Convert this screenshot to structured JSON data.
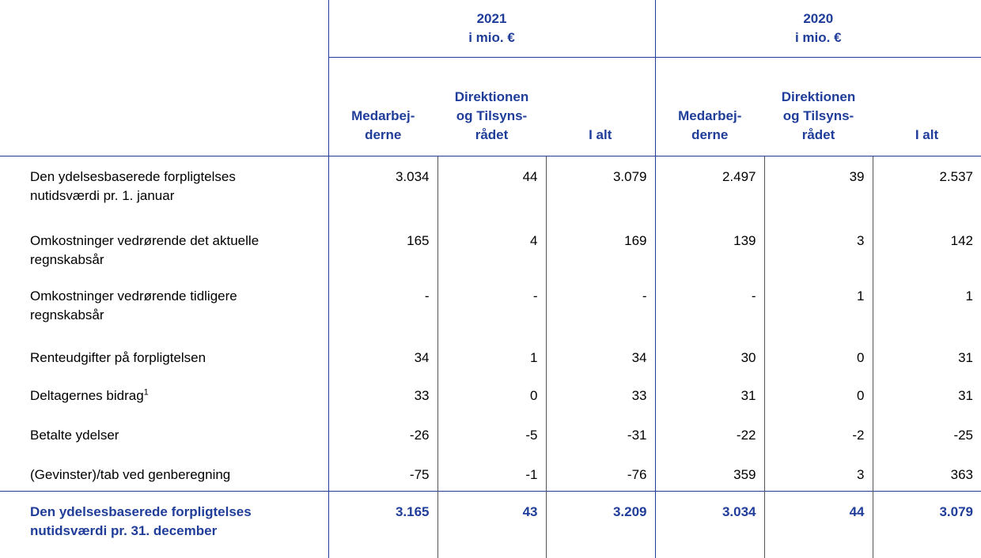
{
  "table": {
    "groups": [
      {
        "year": "2021",
        "unit": "i mio. €",
        "columns": [
          "Medarbej-\nderne",
          "Direktionen\nog Tilsyns-\nrådet",
          "I alt"
        ]
      },
      {
        "year": "2020",
        "unit": "i mio. €",
        "columns": [
          "Medarbej-\nderne",
          "Direktionen\nog Tilsyns-\nrådet",
          "I alt"
        ]
      }
    ],
    "rows": [
      {
        "label": "Den ydelsesbaserede forpligtelses\nnutidsværdi pr. 1. januar",
        "values": [
          "3.034",
          "44",
          "3.079",
          "2.497",
          "39",
          "2.537"
        ]
      },
      {
        "label": "Omkostninger vedrørende det aktuelle\nregnskabsår",
        "values": [
          "165",
          "4",
          "169",
          "139",
          "3",
          "142"
        ]
      },
      {
        "label": "Omkostninger vedrørende tidligere\nregnskabsår",
        "values": [
          "-",
          "-",
          "-",
          "-",
          "1",
          "1"
        ]
      },
      {
        "label": "Renteudgifter på forpligtelsen",
        "values": [
          "34",
          "1",
          "34",
          "30",
          "0",
          "31"
        ]
      },
      {
        "label": "Deltagernes bidrag",
        "footnote": "1",
        "values": [
          "33",
          "0",
          "33",
          "31",
          "0",
          "31"
        ]
      },
      {
        "label": "Betalte ydelser",
        "values": [
          "-26",
          "-5",
          "-31",
          "-22",
          "-2",
          "-25"
        ]
      },
      {
        "label": "(Gevinster)/tab ved genberegning",
        "values": [
          "-75",
          "-1",
          "-76",
          "359",
          "3",
          "363"
        ]
      }
    ],
    "total": {
      "label": "Den ydelsesbaserede forpligtelses\nnutidsværdi pr. 31. december",
      "values": [
        "3.165",
        "43",
        "3.209",
        "3.034",
        "44",
        "3.079"
      ]
    }
  }
}
